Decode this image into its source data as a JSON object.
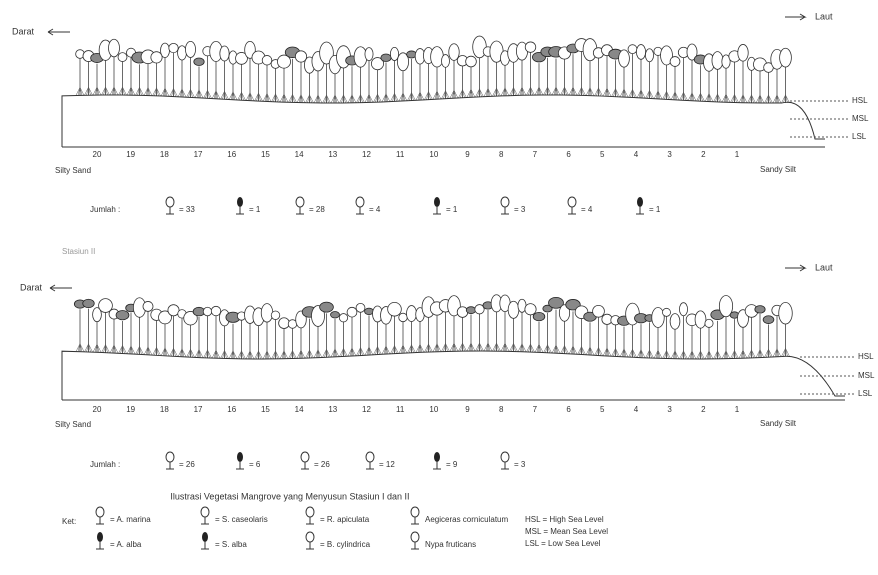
{
  "profiles": [
    {
      "land": "Darat",
      "sea": "Laut",
      "levels": [
        "HSL",
        "MSL",
        "LSL"
      ],
      "ticks": [
        "20",
        "19",
        "18",
        "17",
        "16",
        "15",
        "14",
        "13",
        "12",
        "11",
        "10",
        "9",
        "8",
        "7",
        "6",
        "5",
        "4",
        "3",
        "2",
        "1"
      ],
      "left_soil": "Silty Sand",
      "right_soil": "Sandy Silt",
      "count_label": "Jumlah :",
      "counts": [
        "= 33",
        "= 1",
        "= 28",
        "= 4",
        "= 1",
        "= 3",
        "= 4",
        "= 1"
      ]
    },
    {
      "land": "Darat",
      "sea": "Laut",
      "levels": [
        "HSL",
        "MSL",
        "LSL"
      ],
      "ticks": [
        "20",
        "19",
        "18",
        "17",
        "16",
        "15",
        "14",
        "13",
        "12",
        "11",
        "10",
        "9",
        "8",
        "7",
        "6",
        "5",
        "4",
        "3",
        "2",
        "1"
      ],
      "left_soil": "Silty Sand",
      "right_soil": "Sandy Silt",
      "count_label": "Jumlah :",
      "counts": [
        "= 26",
        "= 6",
        "= 26",
        "= 12",
        "= 9",
        "= 3"
      ]
    }
  ],
  "station_label": "Stasiun II",
  "caption": "Ilustrasi Vegetasi Mangrove yang Menyusun Stasiun I dan II",
  "legend": {
    "key": "Ket:",
    "species": [
      "= A. marina",
      "= A. alba",
      "= S. caseolaris",
      "= S. alba",
      "= R. apiculata",
      "= B. cylindrica",
      "Aegiceras corniculatum",
      "Nypa fruticans"
    ],
    "levels": [
      "HSL = High Sea Level",
      "MSL = Mean Sea Level",
      "LSL = Low Sea Level"
    ]
  }
}
